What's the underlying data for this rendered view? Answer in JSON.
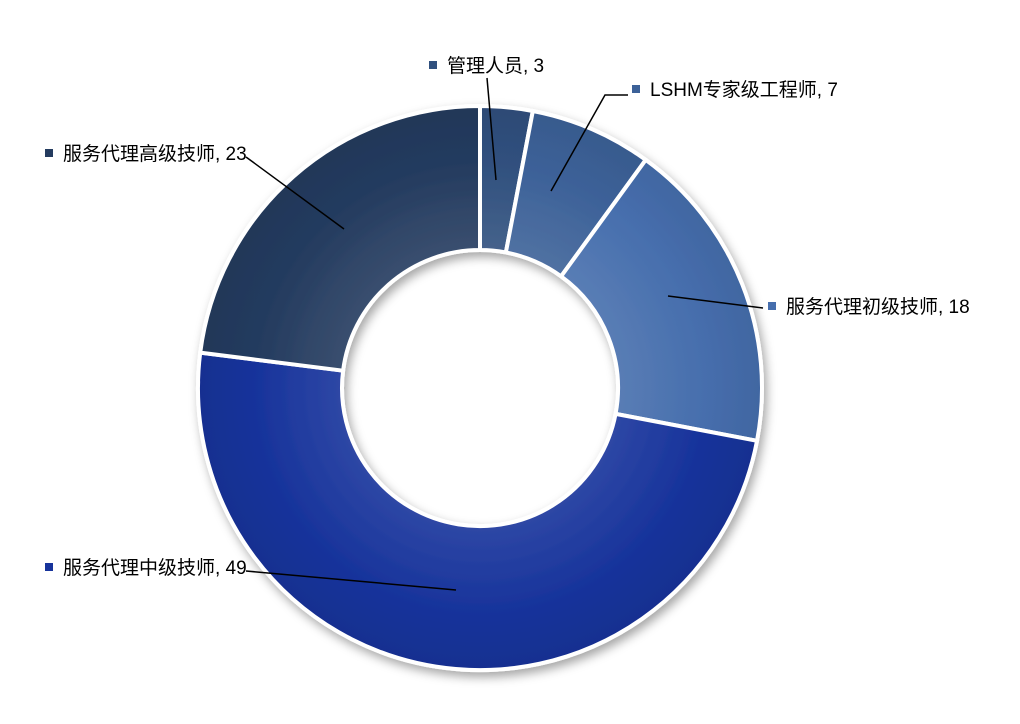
{
  "chart_data": {
    "type": "pie",
    "subtype": "donut",
    "title": "",
    "total": 100,
    "start_angle_deg": 0,
    "direction": "clockwise",
    "inner_radius_ratio": 0.49,
    "background": "#FFFFFF",
    "gap_color": "#FFFFFF",
    "leader_line_color": "#000000",
    "label_text_color": "#000000",
    "legend_position": "outside-callouts",
    "slices": [
      {
        "label": "管理人员, 3",
        "name": "管理人员",
        "value": 3,
        "color": "#30507E"
      },
      {
        "label": "LSHM专家级工程师, 7",
        "name": "LSHM专家级工程师",
        "value": 7,
        "color": "#3C6198"
      },
      {
        "label": "服务代理初级技师, 18",
        "name": "服务代理初级技师",
        "value": 18,
        "color": "#466EAD"
      },
      {
        "label": "服务代理中级技师, 49",
        "name": "服务代理中级技师",
        "value": 49,
        "color": "#17339B"
      },
      {
        "label": "服务代理高级技师, 23",
        "name": "服务代理高级技师",
        "value": 23,
        "color": "#243B5F"
      }
    ]
  }
}
